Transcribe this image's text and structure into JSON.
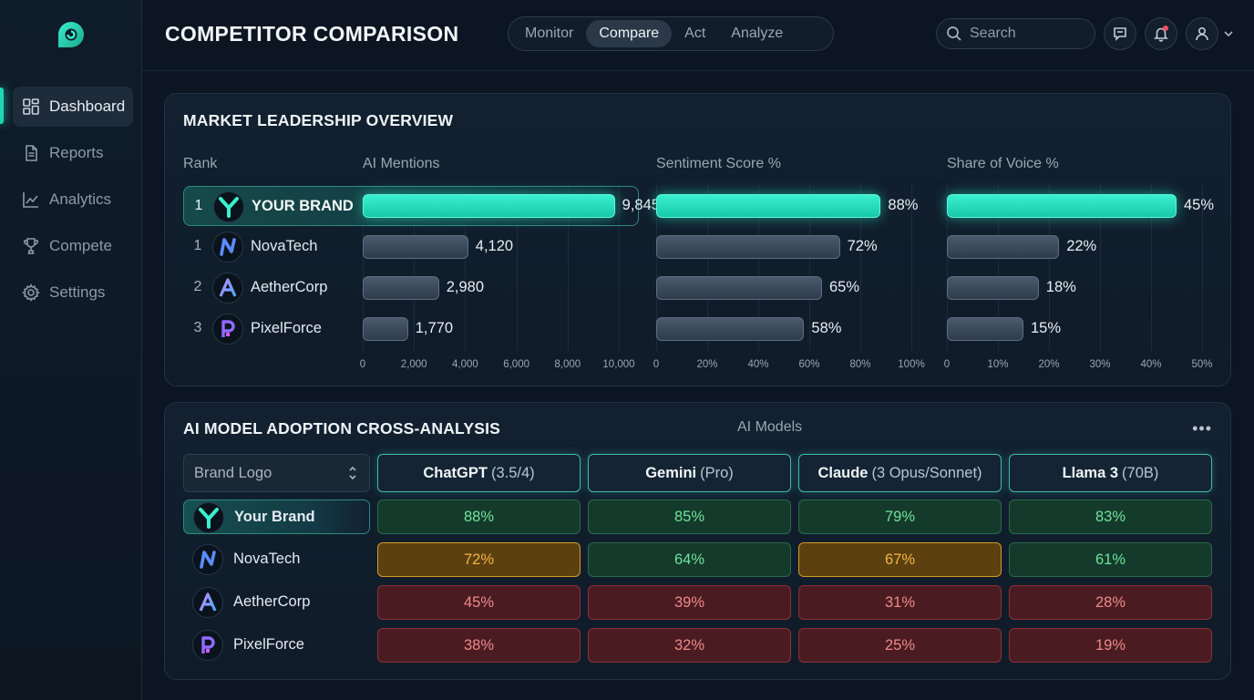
{
  "app": {
    "title": "COMPETITOR COMPARISON"
  },
  "sidebar": {
    "items": [
      {
        "label": "Dashboard",
        "icon": "dashboard-icon",
        "active": true
      },
      {
        "label": "Reports",
        "icon": "document-icon"
      },
      {
        "label": "Analytics",
        "icon": "line-chart-icon"
      },
      {
        "label": "Compete",
        "icon": "trophy-icon"
      },
      {
        "label": "Settings",
        "icon": "gear-icon"
      }
    ]
  },
  "header": {
    "tabs": [
      {
        "label": "Monitor"
      },
      {
        "label": "Compare",
        "active": true
      },
      {
        "label": "Act"
      },
      {
        "label": "Analyze"
      }
    ],
    "search_placeholder": "Search"
  },
  "colors": {
    "accent": "#1fd6b4",
    "high": "#6fe39a",
    "mid": "#f3b545",
    "low": "#ee8a8a"
  },
  "leadership": {
    "title": "MARKET LEADERSHIP OVERVIEW",
    "headers": {
      "rank": "Rank",
      "mentions": "AI Mentions",
      "sentiment": "Sentiment Score %",
      "voice": "Share of Voice %"
    },
    "rows": [
      {
        "rank": "1",
        "brand": "YOUR BRAND",
        "mentions": 9845,
        "mentions_label": "9,845",
        "sentiment": 88,
        "sentiment_label": "88%",
        "voice": 45,
        "voice_label": "45%"
      },
      {
        "rank": "1",
        "brand": "NovaTech",
        "mentions": 4120,
        "mentions_label": "4,120",
        "sentiment": 72,
        "sentiment_label": "72%",
        "voice": 22,
        "voice_label": "22%"
      },
      {
        "rank": "2",
        "brand": "AetherCorp",
        "mentions": 2980,
        "mentions_label": "2,980",
        "sentiment": 65,
        "sentiment_label": "65%",
        "voice": 18,
        "voice_label": "18%"
      },
      {
        "rank": "3",
        "brand": "PixelForce",
        "mentions": 1770,
        "mentions_label": "1,770",
        "sentiment": 58,
        "sentiment_label": "58%",
        "voice": 15,
        "voice_label": "15%"
      }
    ],
    "mentions_ticks": [
      "0",
      "2,000",
      "4,000",
      "6,000",
      "8,000",
      "10,000"
    ],
    "sentiment_ticks": [
      "0",
      "20%",
      "40%",
      "60%",
      "80%",
      "100%"
    ],
    "voice_ticks": [
      "0",
      "10%",
      "20%",
      "30%",
      "40%",
      "50%"
    ]
  },
  "adoption": {
    "title": "AI MODEL ADOPTION CROSS-ANALYSIS",
    "models_label": "AI Models",
    "more_label": "•••",
    "dropdown_label": "Brand Logo",
    "models": [
      {
        "name": "ChatGPT",
        "version": "(3.5/4)"
      },
      {
        "name": "Gemini",
        "version": "(Pro)"
      },
      {
        "name": "Claude",
        "version": "(3 Opus/Sonnet)"
      },
      {
        "name": "Llama 3",
        "version": "(70B)"
      }
    ],
    "rows": [
      {
        "brand": "Your Brand",
        "values": [
          "88%",
          "85%",
          "79%",
          "83%"
        ],
        "levels": [
          "green",
          "green",
          "green",
          "green"
        ]
      },
      {
        "brand": "NovaTech",
        "values": [
          "72%",
          "64%",
          "67%",
          "61%"
        ],
        "levels": [
          "amber",
          "green",
          "amber",
          "green"
        ]
      },
      {
        "brand": "AetherCorp",
        "values": [
          "45%",
          "39%",
          "31%",
          "28%"
        ],
        "levels": [
          "red",
          "red",
          "red",
          "red"
        ]
      },
      {
        "brand": "PixelForce",
        "values": [
          "38%",
          "32%",
          "25%",
          "19%"
        ],
        "levels": [
          "red",
          "red",
          "red",
          "red"
        ]
      }
    ]
  }
}
